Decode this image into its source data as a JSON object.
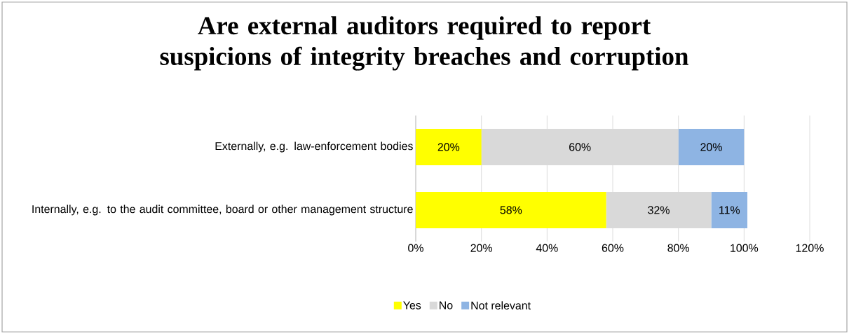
{
  "chart_data": {
    "type": "bar",
    "orientation": "horizontal",
    "stacked": true,
    "title": "Are external auditors required to report suspicions of integrity breaches and corruption",
    "categories": [
      "Externally, e.g. law-enforcement bodies",
      "Internally, e.g. to the audit committee, board or other management structure"
    ],
    "series": [
      {
        "name": "Yes",
        "color": "#ffff00",
        "values": [
          20,
          58
        ],
        "value_labels": [
          "20%",
          "58%"
        ]
      },
      {
        "name": "No",
        "color": "#d9d9d9",
        "values": [
          60,
          32
        ],
        "value_labels": [
          "60%",
          "32%"
        ]
      },
      {
        "name": "Not relevant",
        "color": "#8eb4e3",
        "values": [
          20,
          11
        ],
        "value_labels": [
          "20%",
          "11%"
        ]
      }
    ],
    "xlim": [
      0,
      120
    ],
    "xticks": [
      {
        "value": 0,
        "label": "0%"
      },
      {
        "value": 20,
        "label": "20%"
      },
      {
        "value": 40,
        "label": "40%"
      },
      {
        "value": 60,
        "label": "60%"
      },
      {
        "value": 80,
        "label": "80%"
      },
      {
        "value": 100,
        "label": "100%"
      },
      {
        "value": 120,
        "label": "120%"
      }
    ],
    "grid": "x",
    "legend": "bottom"
  }
}
